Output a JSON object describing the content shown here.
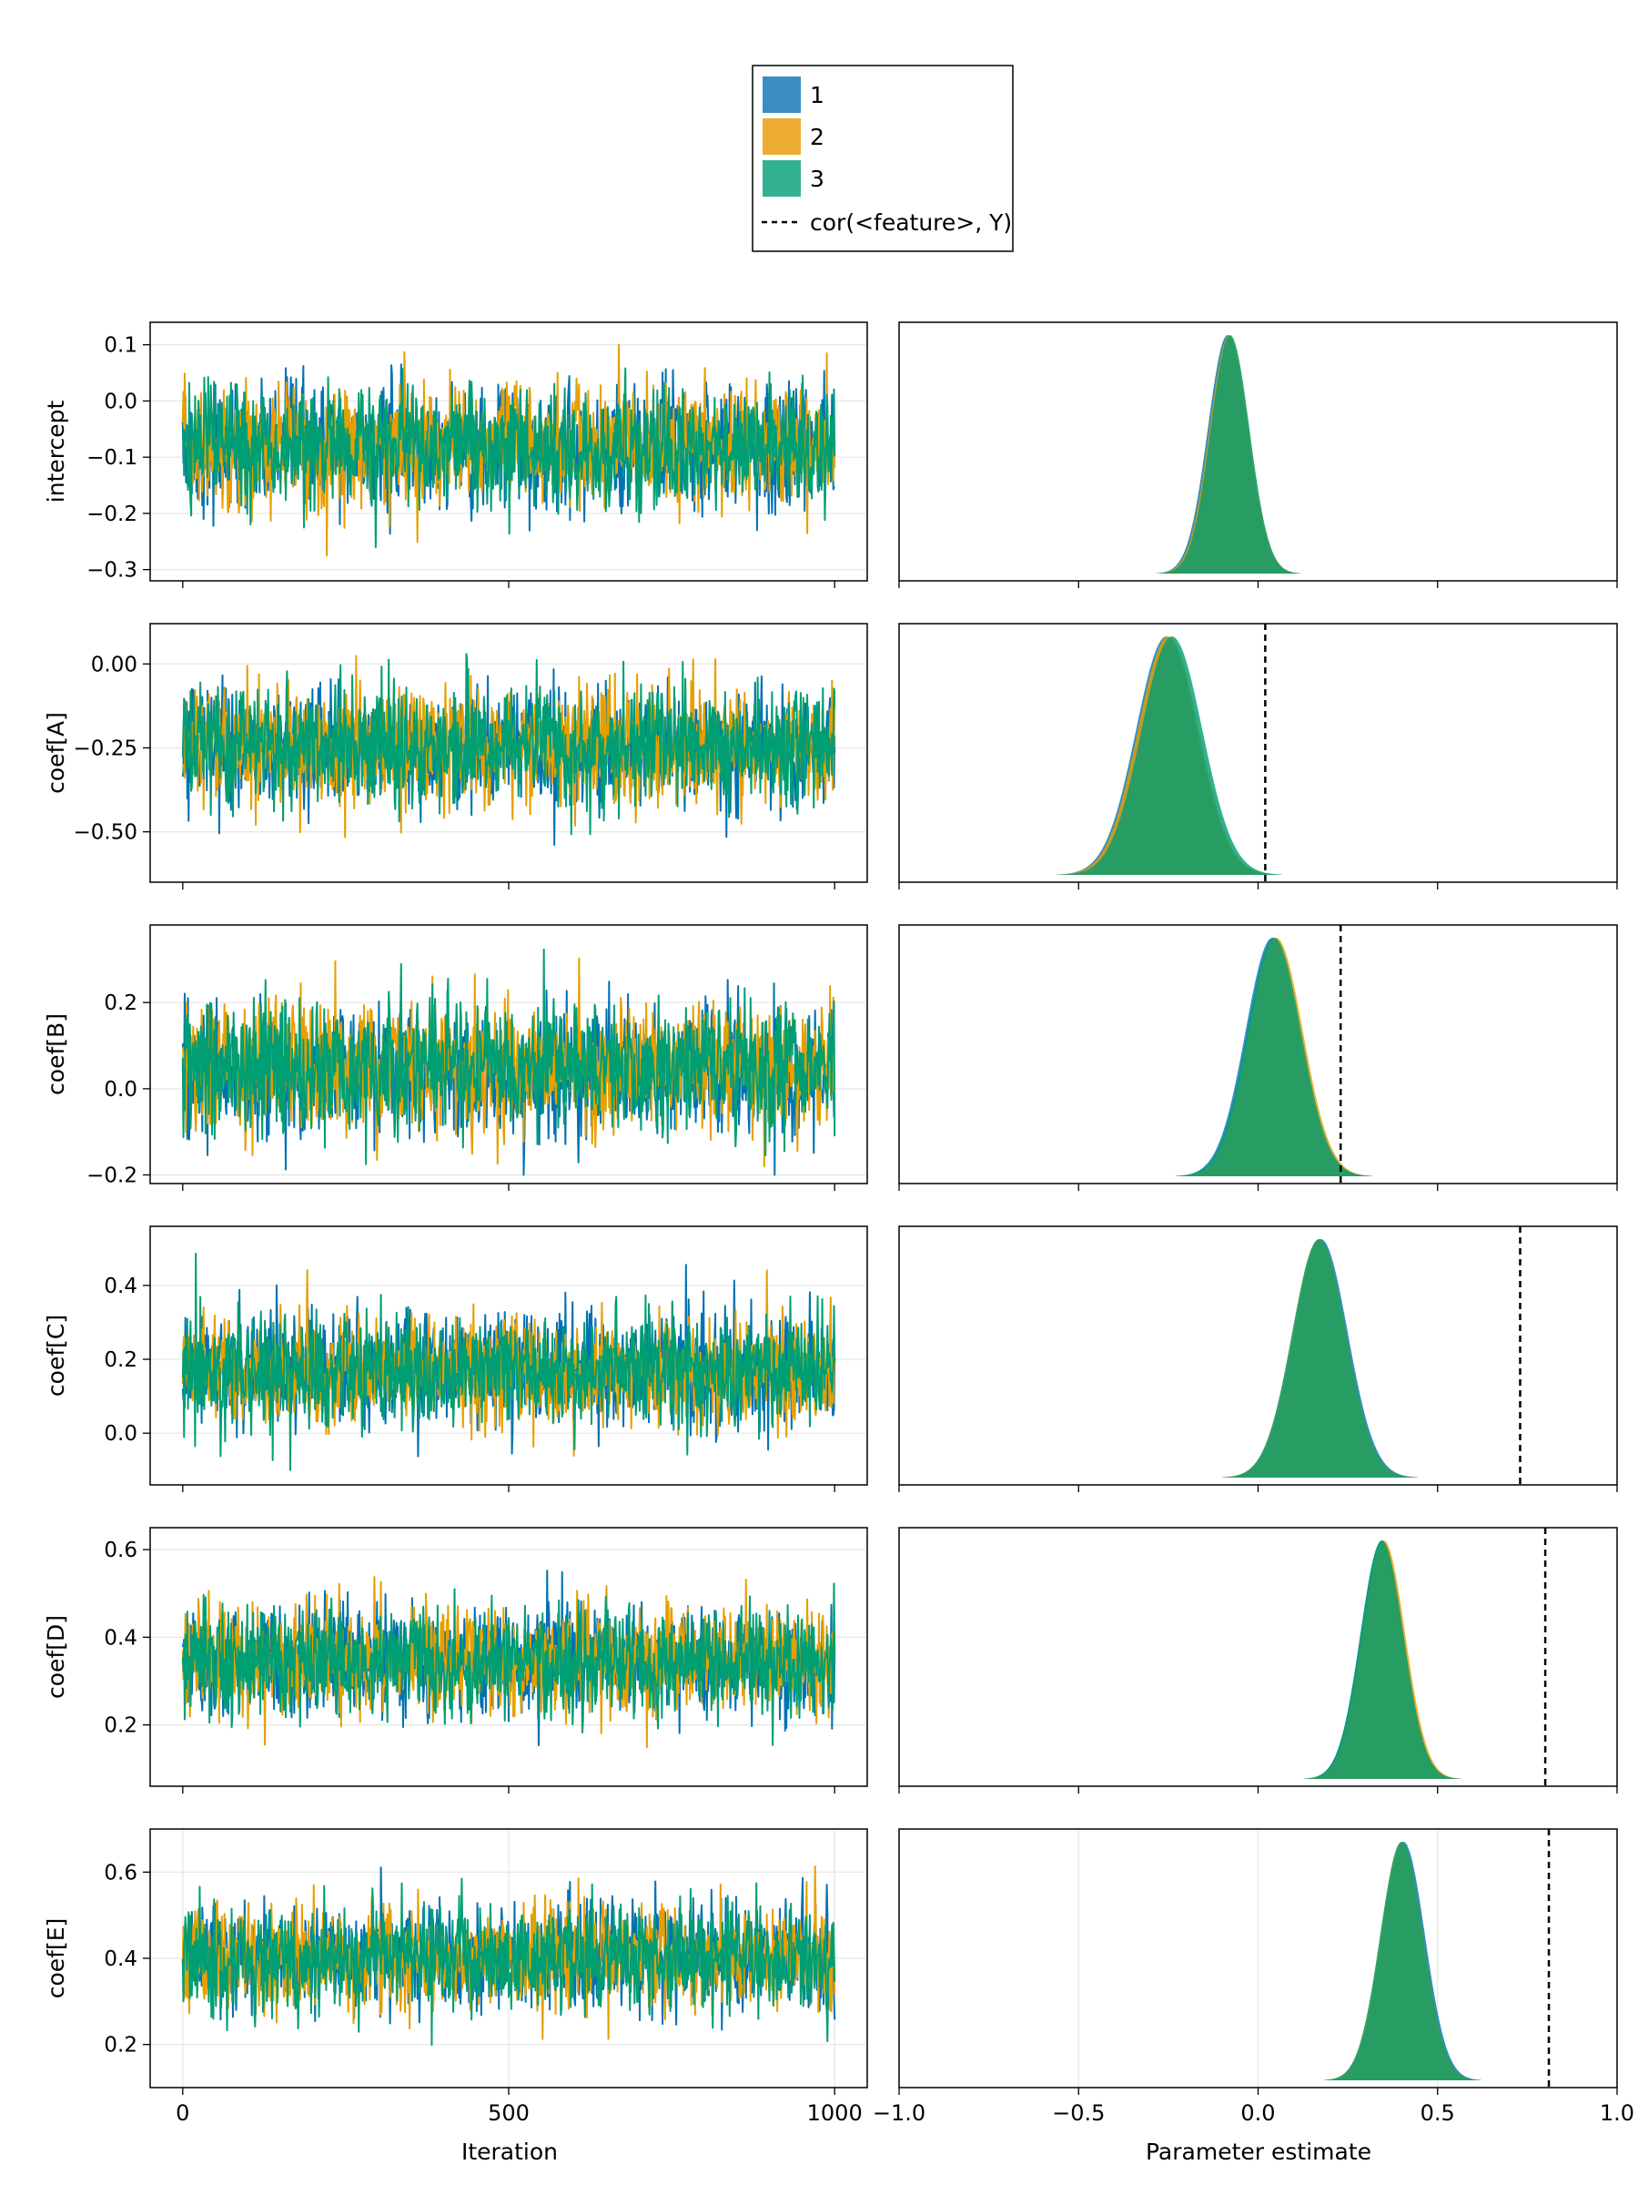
{
  "colors": {
    "chain1": "#0072b2",
    "chain2": "#e69f00",
    "chain3": "#009e73",
    "legend_chain1": "#3b8ec4",
    "legend_chain2": "#ecad32",
    "legend_chain3": "#33b28f",
    "grid": "#e5e5e5",
    "axis": "#000000",
    "reference": "#000000"
  },
  "chart_data": {
    "type": "line",
    "legend": {
      "position": "top-center",
      "entries": [
        "1",
        "2",
        "3"
      ],
      "reference_label": "cor(<feature>, Y)"
    },
    "trace": {
      "xlabel": "Iteration",
      "xlim": [
        -50,
        1050
      ],
      "xticks": [
        0,
        500,
        1000
      ],
      "xtick_labels": [
        "0",
        "500",
        "1000"
      ],
      "iterations": 1000,
      "grid": true
    },
    "density": {
      "xlabel": "Parameter estimate",
      "xlim": [
        -1.0,
        1.0
      ],
      "xticks": [
        -1.0,
        -0.5,
        0.0,
        0.5,
        1.0
      ],
      "xtick_labels": [
        "−1.0",
        "−0.5",
        "0.0",
        "0.5",
        "1.0"
      ],
      "grid": true
    },
    "parameters": [
      {
        "name": "intercept",
        "ylim": [
          -0.32,
          0.14
        ],
        "yticks": [
          -0.3,
          -0.2,
          -0.1,
          0.0,
          0.1
        ],
        "ytick_labels": [
          "−0.3",
          "−0.2",
          "−0.1",
          "0.0",
          "0.1"
        ],
        "chain_means": [
          -0.085,
          -0.08,
          -0.078
        ],
        "chain_sds": [
          0.055,
          0.055,
          0.054
        ],
        "trace_range": [
          -0.29,
          0.12
        ],
        "reference": null
      },
      {
        "name": "coef[A]",
        "ylim": [
          -0.65,
          0.12
        ],
        "yticks": [
          -0.5,
          -0.25,
          0.0
        ],
        "ytick_labels": [
          "−0.50",
          "−0.25",
          "0.00"
        ],
        "chain_means": [
          -0.255,
          -0.25,
          -0.24
        ],
        "chain_sds": [
          0.085,
          0.085,
          0.085
        ],
        "trace_range": [
          -0.61,
          0.09
        ],
        "reference": 0.02
      },
      {
        "name": "coef[B]",
        "ylim": [
          -0.22,
          0.38
        ],
        "yticks": [
          -0.2,
          0.0,
          0.2
        ],
        "ytick_labels": [
          "−0.2",
          "0.0",
          "0.2"
        ],
        "chain_means": [
          0.04,
          0.05,
          0.045
        ],
        "chain_sds": [
          0.075,
          0.075,
          0.075
        ],
        "trace_range": [
          -0.2,
          0.36
        ],
        "reference": 0.23
      },
      {
        "name": "coef[C]",
        "ylim": [
          -0.14,
          0.56
        ],
        "yticks": [
          0.0,
          0.2,
          0.4
        ],
        "ytick_labels": [
          "0.0",
          "0.2",
          "0.4"
        ],
        "chain_means": [
          0.175,
          0.17,
          0.17
        ],
        "chain_sds": [
          0.075,
          0.075,
          0.075
        ],
        "trace_range": [
          -0.1,
          0.53
        ],
        "reference": 0.73
      },
      {
        "name": "coef[D]",
        "ylim": [
          0.06,
          0.65
        ],
        "yticks": [
          0.2,
          0.4,
          0.6
        ],
        "ytick_labels": [
          "0.2",
          "0.4",
          "0.6"
        ],
        "chain_means": [
          0.345,
          0.35,
          0.345
        ],
        "chain_sds": [
          0.06,
          0.06,
          0.06
        ],
        "trace_range": [
          0.09,
          0.62
        ],
        "reference": 0.8
      },
      {
        "name": "coef[E]",
        "ylim": [
          0.1,
          0.7
        ],
        "yticks": [
          0.2,
          0.4,
          0.6
        ],
        "ytick_labels": [
          "0.2",
          "0.4",
          "0.6"
        ],
        "chain_means": [
          0.405,
          0.4,
          0.4
        ],
        "chain_sds": [
          0.06,
          0.06,
          0.06
        ],
        "trace_range": [
          0.11,
          0.67
        ],
        "reference": 0.81
      }
    ]
  }
}
